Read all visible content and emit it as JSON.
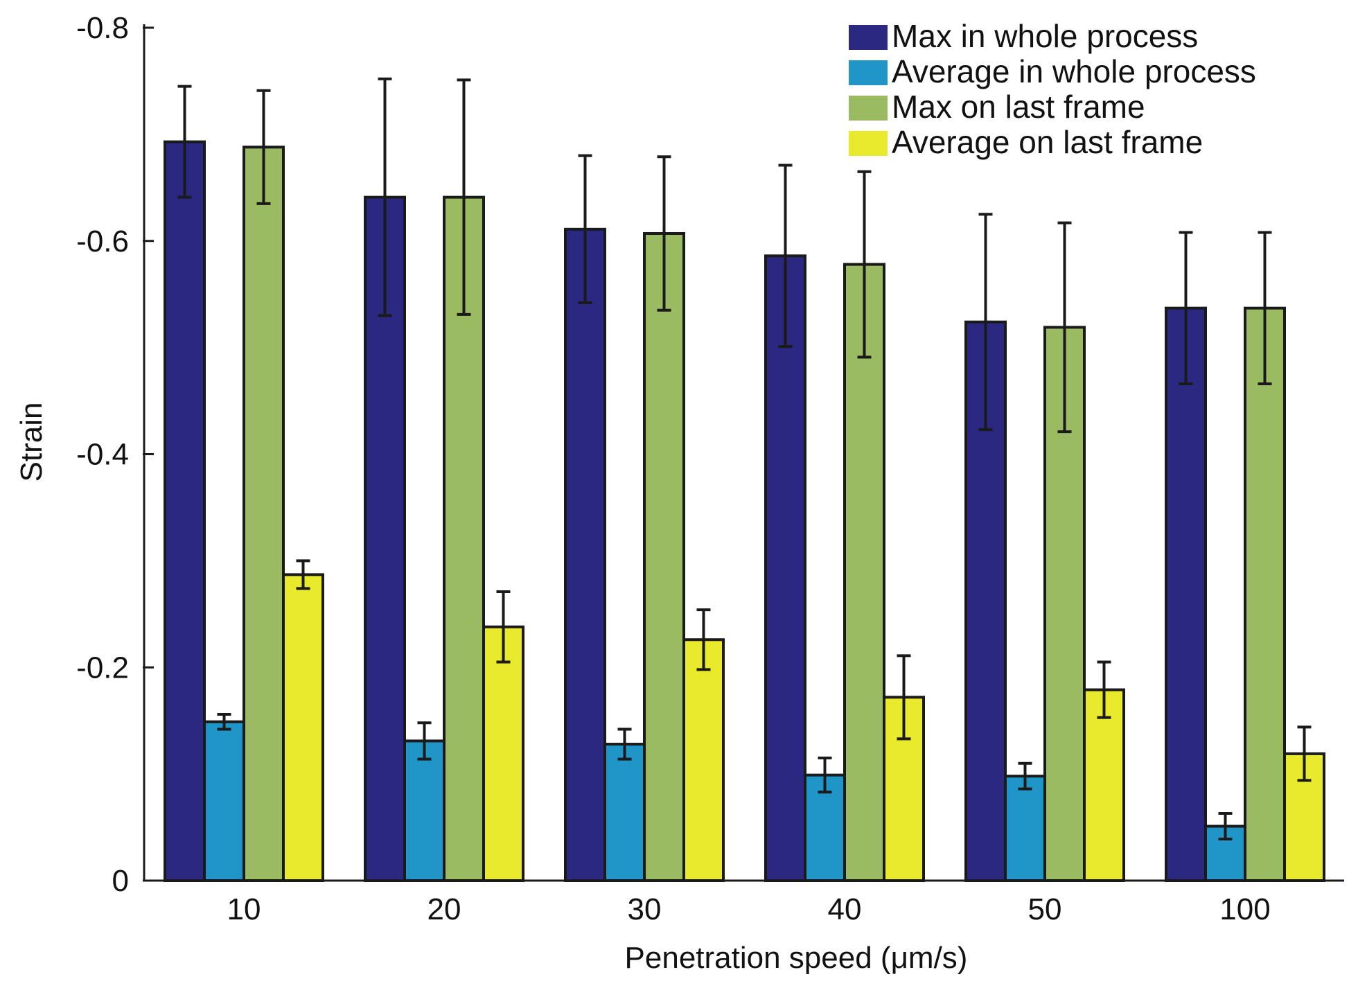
{
  "chart_data": {
    "type": "bar",
    "xlabel": "Penetration speed (μm/s)",
    "ylabel": "Strain",
    "categories": [
      "10",
      "20",
      "30",
      "40",
      "50",
      "100"
    ],
    "ylim": [
      0,
      -0.8
    ],
    "y_axis_direction": "reversed (0 at bottom, -0.8 at top)",
    "yticks": [
      "0",
      "-0.2",
      "-0.4",
      "-0.6",
      "-0.8"
    ],
    "ytick_values": [
      0,
      -0.2,
      -0.4,
      -0.6,
      -0.8
    ],
    "grid": false,
    "legend_position": "top-right",
    "error_bars": true,
    "series": [
      {
        "name": "Max in whole process",
        "color": "#2b2882",
        "values": [
          -0.693,
          -0.641,
          -0.611,
          -0.586,
          -0.524,
          -0.537
        ],
        "errors": [
          0.052,
          0.111,
          0.069,
          0.085,
          0.101,
          0.071
        ]
      },
      {
        "name": "Average in whole process",
        "color": "#1f95c8",
        "values": [
          -0.149,
          -0.131,
          -0.128,
          -0.099,
          -0.098,
          -0.051
        ],
        "errors": [
          0.007,
          0.017,
          0.014,
          0.016,
          0.012,
          0.012
        ]
      },
      {
        "name": "Max on last frame",
        "color": "#9bbb63",
        "values": [
          -0.688,
          -0.641,
          -0.607,
          -0.578,
          -0.519,
          -0.537
        ],
        "errors": [
          0.053,
          0.11,
          0.072,
          0.087,
          0.098,
          0.071
        ]
      },
      {
        "name": "Average on last frame",
        "color": "#eaea2c",
        "values": [
          -0.287,
          -0.238,
          -0.226,
          -0.172,
          -0.179,
          -0.119
        ],
        "errors": [
          0.013,
          0.033,
          0.028,
          0.039,
          0.026,
          0.025
        ]
      }
    ]
  }
}
